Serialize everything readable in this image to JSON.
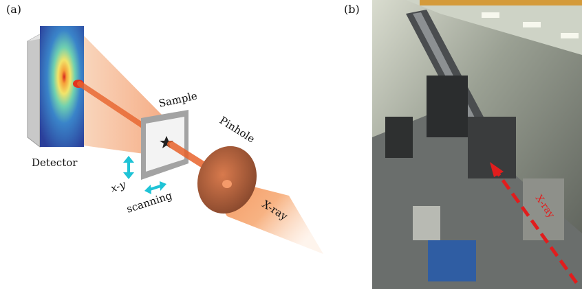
{
  "panel_a": {
    "letter": "(a)",
    "labels": {
      "detector": "Detector",
      "sample": "Sample",
      "pinhole": "Pinhole",
      "xy": "x-y",
      "scanning": "scanning",
      "xray": "X-ray"
    },
    "colors": {
      "beam": "#f07a3a",
      "arrow": "#1ec3d6",
      "sample_frame": "#9a9a9a",
      "detector_frame": "#b8b8b8"
    }
  },
  "panel_b": {
    "letter": "(b)",
    "photo_label": "X-ray",
    "colors": {
      "dashed_arrow": "#e11d1d"
    }
  }
}
